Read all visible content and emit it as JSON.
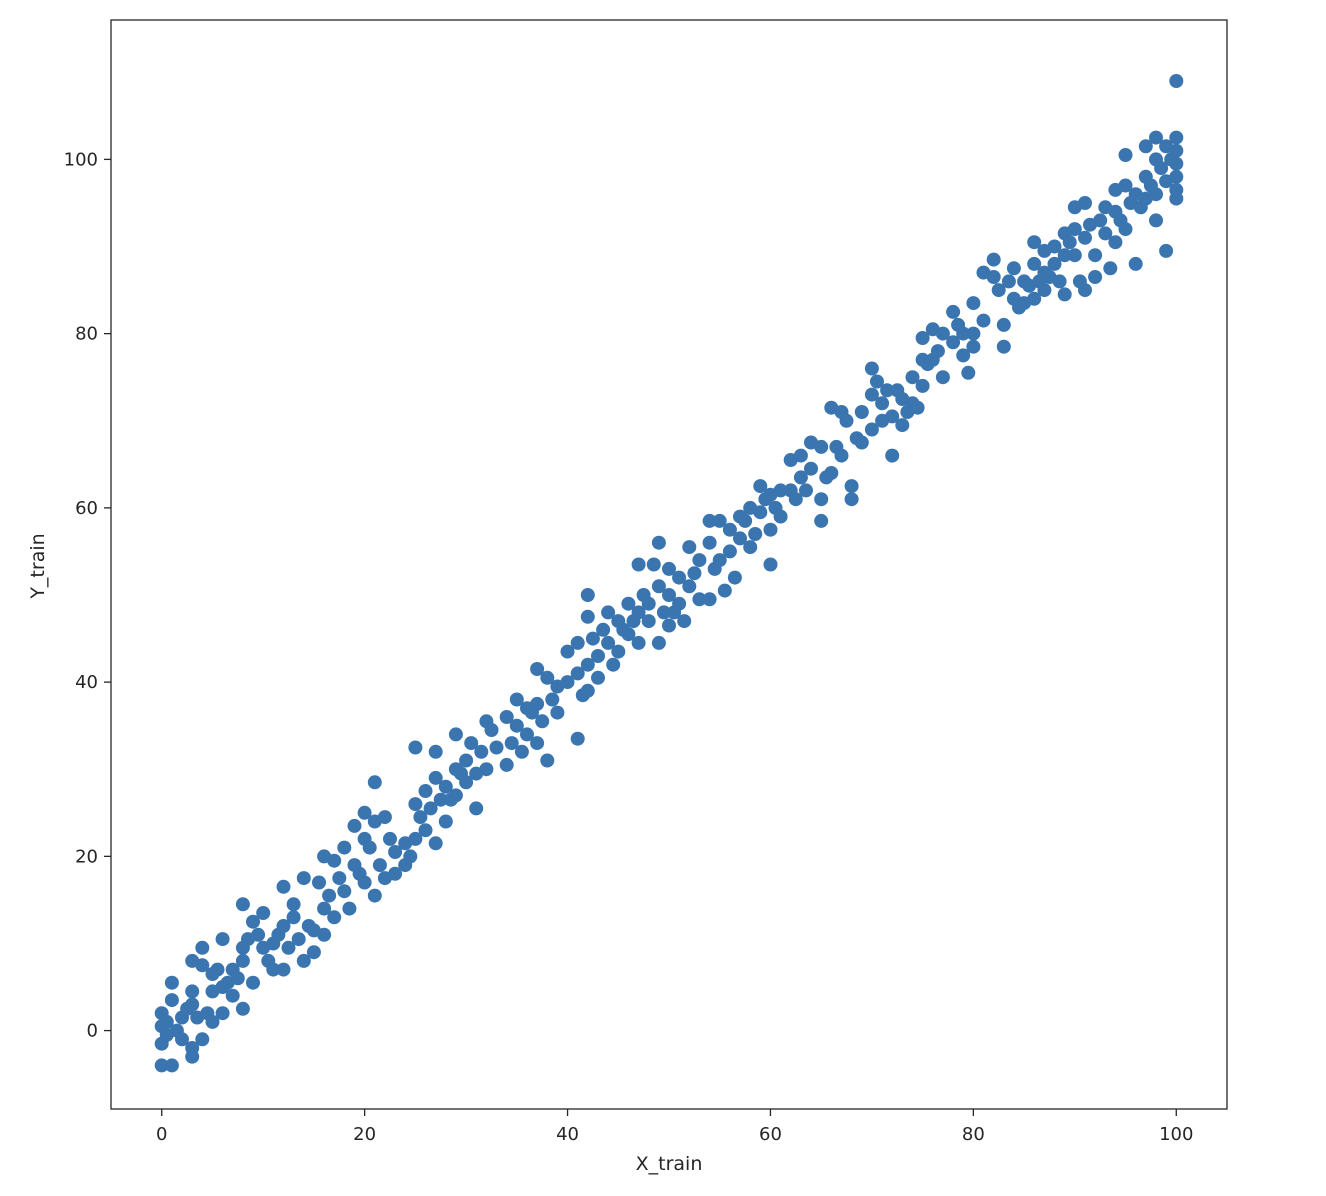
{
  "chart_data": {
    "type": "scatter",
    "title": "",
    "xlabel": "X_train",
    "ylabel": "Y_train",
    "xlim": [
      -5,
      105
    ],
    "ylim": [
      -9,
      116
    ],
    "xticks": [
      0,
      20,
      40,
      60,
      80,
      100
    ],
    "yticks": [
      0,
      20,
      40,
      60,
      80,
      100
    ],
    "grid": false,
    "legend": "none",
    "marker_color": "#3a75b0",
    "points": [
      [
        0,
        -4
      ],
      [
        0,
        -1.5
      ],
      [
        0,
        0.5
      ],
      [
        0,
        2
      ],
      [
        0.5,
        -0.5
      ],
      [
        0.5,
        1
      ],
      [
        1,
        -4
      ],
      [
        1,
        5.5
      ],
      [
        1,
        3.5
      ],
      [
        1.5,
        0
      ],
      [
        2,
        1.5
      ],
      [
        2,
        -1
      ],
      [
        2.5,
        2.5
      ],
      [
        3,
        -3
      ],
      [
        3,
        -2
      ],
      [
        3,
        3
      ],
      [
        3,
        4.5
      ],
      [
        3,
        8
      ],
      [
        3.5,
        1.5
      ],
      [
        4,
        -1
      ],
      [
        4,
        7.5
      ],
      [
        4,
        9.5
      ],
      [
        4.5,
        2
      ],
      [
        5,
        1
      ],
      [
        5,
        4.5
      ],
      [
        5,
        6.5
      ],
      [
        5.5,
        7
      ],
      [
        6,
        10.5
      ],
      [
        6,
        2
      ],
      [
        6,
        5
      ],
      [
        6.5,
        5.5
      ],
      [
        7,
        4
      ],
      [
        7,
        7
      ],
      [
        7.5,
        6
      ],
      [
        8,
        14.5
      ],
      [
        8,
        2.5
      ],
      [
        8,
        8
      ],
      [
        8,
        9.5
      ],
      [
        8.5,
        10.5
      ],
      [
        9,
        12.5
      ],
      [
        9,
        5.5
      ],
      [
        9.5,
        11
      ],
      [
        10,
        9.5
      ],
      [
        10,
        13.5
      ],
      [
        10.5,
        8
      ],
      [
        11,
        10
      ],
      [
        11,
        7
      ],
      [
        11.5,
        11
      ],
      [
        12,
        16.5
      ],
      [
        12,
        12
      ],
      [
        12,
        7
      ],
      [
        12.5,
        9.5
      ],
      [
        13,
        13
      ],
      [
        13,
        14.5
      ],
      [
        13.5,
        10.5
      ],
      [
        14,
        17.5
      ],
      [
        14,
        8
      ],
      [
        14.5,
        12
      ],
      [
        15,
        11.5
      ],
      [
        15,
        9
      ],
      [
        15.5,
        17
      ],
      [
        16,
        20
      ],
      [
        16,
        14
      ],
      [
        16,
        11
      ],
      [
        16.5,
        15.5
      ],
      [
        17,
        19.5
      ],
      [
        17,
        13
      ],
      [
        17.5,
        17.5
      ],
      [
        18,
        21
      ],
      [
        18,
        16
      ],
      [
        18.5,
        14
      ],
      [
        19,
        23.5
      ],
      [
        19,
        19
      ],
      [
        19.5,
        18
      ],
      [
        20,
        25
      ],
      [
        20,
        22
      ],
      [
        20,
        17
      ],
      [
        20.5,
        21
      ],
      [
        21,
        28.5
      ],
      [
        21,
        15.5
      ],
      [
        21,
        24
      ],
      [
        21.5,
        19
      ],
      [
        22,
        24.5
      ],
      [
        22,
        17.5
      ],
      [
        22.5,
        22
      ],
      [
        23,
        18
      ],
      [
        23,
        20.5
      ],
      [
        24,
        21.5
      ],
      [
        24,
        19
      ],
      [
        24.5,
        20
      ],
      [
        25,
        32.5
      ],
      [
        25,
        26
      ],
      [
        25,
        22
      ],
      [
        25.5,
        24.5
      ],
      [
        26,
        27.5
      ],
      [
        26,
        23
      ],
      [
        26.5,
        25.5
      ],
      [
        27,
        32
      ],
      [
        27,
        29
      ],
      [
        27,
        21.5
      ],
      [
        27.5,
        26.5
      ],
      [
        28,
        28
      ],
      [
        28,
        24
      ],
      [
        28.5,
        26.5
      ],
      [
        29,
        34
      ],
      [
        29,
        30
      ],
      [
        29,
        27
      ],
      [
        29.5,
        29.5
      ],
      [
        30,
        31
      ],
      [
        30,
        28.5
      ],
      [
        30.5,
        33
      ],
      [
        31,
        29.5
      ],
      [
        31,
        25.5
      ],
      [
        31.5,
        32
      ],
      [
        32,
        35.5
      ],
      [
        32,
        30
      ],
      [
        32.5,
        34.5
      ],
      [
        33,
        32.5
      ],
      [
        34,
        36
      ],
      [
        34,
        30.5
      ],
      [
        34.5,
        33
      ],
      [
        35,
        38
      ],
      [
        35,
        35
      ],
      [
        35.5,
        32
      ],
      [
        36,
        37
      ],
      [
        36,
        34
      ],
      [
        36.5,
        36.5
      ],
      [
        37,
        41.5
      ],
      [
        37,
        37.5
      ],
      [
        37,
        33
      ],
      [
        37.5,
        35.5
      ],
      [
        38,
        40.5
      ],
      [
        38,
        31
      ],
      [
        38.5,
        38
      ],
      [
        39,
        39.5
      ],
      [
        39,
        36.5
      ],
      [
        40,
        43.5
      ],
      [
        40,
        40
      ],
      [
        41,
        33.5
      ],
      [
        41,
        44.5
      ],
      [
        41,
        41
      ],
      [
        41.5,
        38.5
      ],
      [
        42,
        50
      ],
      [
        42,
        47.5
      ],
      [
        42,
        42
      ],
      [
        42,
        39
      ],
      [
        42.5,
        45
      ],
      [
        43,
        43
      ],
      [
        43,
        40.5
      ],
      [
        43.5,
        46
      ],
      [
        44,
        48
      ],
      [
        44,
        44.5
      ],
      [
        44.5,
        42
      ],
      [
        45,
        47
      ],
      [
        45,
        43.5
      ],
      [
        45.5,
        46
      ],
      [
        46,
        49
      ],
      [
        46,
        45.5
      ],
      [
        46.5,
        47
      ],
      [
        47,
        53.5
      ],
      [
        47,
        48
      ],
      [
        47,
        44.5
      ],
      [
        47.5,
        50
      ],
      [
        48,
        47
      ],
      [
        48,
        49
      ],
      [
        48.5,
        53.5
      ],
      [
        49,
        56
      ],
      [
        49,
        51
      ],
      [
        49,
        44.5
      ],
      [
        49.5,
        48
      ],
      [
        50,
        53
      ],
      [
        50,
        50
      ],
      [
        50,
        46.5
      ],
      [
        50.5,
        48
      ],
      [
        51,
        52
      ],
      [
        51,
        49
      ],
      [
        51.5,
        47
      ],
      [
        52,
        55.5
      ],
      [
        52,
        51
      ],
      [
        52.5,
        52.5
      ],
      [
        53,
        54
      ],
      [
        53,
        49.5
      ],
      [
        54,
        58.5
      ],
      [
        54,
        56
      ],
      [
        54,
        49.5
      ],
      [
        54.5,
        53
      ],
      [
        55,
        58.5
      ],
      [
        55,
        54
      ],
      [
        55.5,
        50.5
      ],
      [
        56,
        57.5
      ],
      [
        56,
        55
      ],
      [
        56.5,
        52
      ],
      [
        57,
        59
      ],
      [
        57,
        56.5
      ],
      [
        57.5,
        58.5
      ],
      [
        58,
        60
      ],
      [
        58,
        55.5
      ],
      [
        58.5,
        57
      ],
      [
        59,
        62.5
      ],
      [
        59,
        59.5
      ],
      [
        59.5,
        61
      ],
      [
        60,
        61.5
      ],
      [
        60,
        57.5
      ],
      [
        60,
        53.5
      ],
      [
        60.5,
        60
      ],
      [
        61,
        62
      ],
      [
        61,
        59
      ],
      [
        62,
        65.5
      ],
      [
        62,
        62
      ],
      [
        62.5,
        61
      ],
      [
        63,
        66
      ],
      [
        63,
        63.5
      ],
      [
        63.5,
        62
      ],
      [
        64,
        67.5
      ],
      [
        64,
        64.5
      ],
      [
        65,
        67
      ],
      [
        65,
        61
      ],
      [
        65,
        58.5
      ],
      [
        65.5,
        63.5
      ],
      [
        66,
        71.5
      ],
      [
        66,
        64
      ],
      [
        66.5,
        67
      ],
      [
        67,
        71
      ],
      [
        67,
        66
      ],
      [
        67.5,
        70
      ],
      [
        68,
        62.5
      ],
      [
        68,
        61
      ],
      [
        68.5,
        68
      ],
      [
        69,
        71
      ],
      [
        69,
        67.5
      ],
      [
        70,
        76
      ],
      [
        70,
        73
      ],
      [
        70,
        69
      ],
      [
        70.5,
        74.5
      ],
      [
        71,
        70
      ],
      [
        71,
        72
      ],
      [
        71.5,
        73.5
      ],
      [
        72,
        66
      ],
      [
        72,
        70.5
      ],
      [
        72.5,
        73.5
      ],
      [
        73,
        72.5
      ],
      [
        73,
        69.5
      ],
      [
        73.5,
        71
      ],
      [
        74,
        75
      ],
      [
        74,
        72
      ],
      [
        74.5,
        71.5
      ],
      [
        75,
        79.5
      ],
      [
        75,
        77
      ],
      [
        75,
        74
      ],
      [
        75.5,
        76.5
      ],
      [
        76,
        80.5
      ],
      [
        76,
        77
      ],
      [
        76.5,
        78
      ],
      [
        77,
        80
      ],
      [
        77,
        75
      ],
      [
        78,
        82.5
      ],
      [
        78,
        79
      ],
      [
        78.5,
        81
      ],
      [
        79,
        80
      ],
      [
        79,
        77.5
      ],
      [
        79.5,
        75.5
      ],
      [
        80,
        83.5
      ],
      [
        80,
        80
      ],
      [
        80,
        78.5
      ],
      [
        81,
        87
      ],
      [
        81,
        81.5
      ],
      [
        82,
        88.5
      ],
      [
        82,
        86.5
      ],
      [
        82.5,
        85
      ],
      [
        83,
        78.5
      ],
      [
        83,
        81
      ],
      [
        83.5,
        86
      ],
      [
        84,
        87.5
      ],
      [
        84,
        84
      ],
      [
        84.5,
        83
      ],
      [
        85,
        86
      ],
      [
        85,
        83.5
      ],
      [
        85.5,
        85.5
      ],
      [
        86,
        90.5
      ],
      [
        86,
        88
      ],
      [
        86,
        84
      ],
      [
        86.5,
        86
      ],
      [
        87,
        89.5
      ],
      [
        87,
        87
      ],
      [
        87,
        85
      ],
      [
        87.5,
        86.5
      ],
      [
        88,
        90
      ],
      [
        88,
        88
      ],
      [
        88.5,
        86
      ],
      [
        89,
        91.5
      ],
      [
        89,
        89
      ],
      [
        89,
        84.5
      ],
      [
        89.5,
        90.5
      ],
      [
        90,
        94.5
      ],
      [
        90,
        92
      ],
      [
        90,
        89
      ],
      [
        90.5,
        86
      ],
      [
        91,
        95
      ],
      [
        91,
        91
      ],
      [
        91,
        85
      ],
      [
        91.5,
        92.5
      ],
      [
        92,
        89
      ],
      [
        92,
        86.5
      ],
      [
        92.5,
        93
      ],
      [
        93,
        94.5
      ],
      [
        93,
        91.5
      ],
      [
        93.5,
        87.5
      ],
      [
        94,
        96.5
      ],
      [
        94,
        94
      ],
      [
        94,
        90.5
      ],
      [
        94.5,
        93
      ],
      [
        95,
        100.5
      ],
      [
        95,
        97
      ],
      [
        95,
        92
      ],
      [
        95.5,
        95
      ],
      [
        96,
        96
      ],
      [
        96,
        88
      ],
      [
        96.5,
        94.5
      ],
      [
        97,
        101.5
      ],
      [
        97,
        98
      ],
      [
        97,
        95.5
      ],
      [
        97.5,
        97
      ],
      [
        98,
        102.5
      ],
      [
        98,
        100
      ],
      [
        98,
        96
      ],
      [
        98,
        93
      ],
      [
        98.5,
        99
      ],
      [
        99,
        101.5
      ],
      [
        99,
        97.5
      ],
      [
        99,
        89.5
      ],
      [
        99.5,
        100
      ],
      [
        100,
        109
      ],
      [
        100,
        102.5
      ],
      [
        100,
        101
      ],
      [
        100,
        99.5
      ],
      [
        100,
        98
      ],
      [
        100,
        96.5
      ],
      [
        100,
        95.5
      ]
    ]
  }
}
